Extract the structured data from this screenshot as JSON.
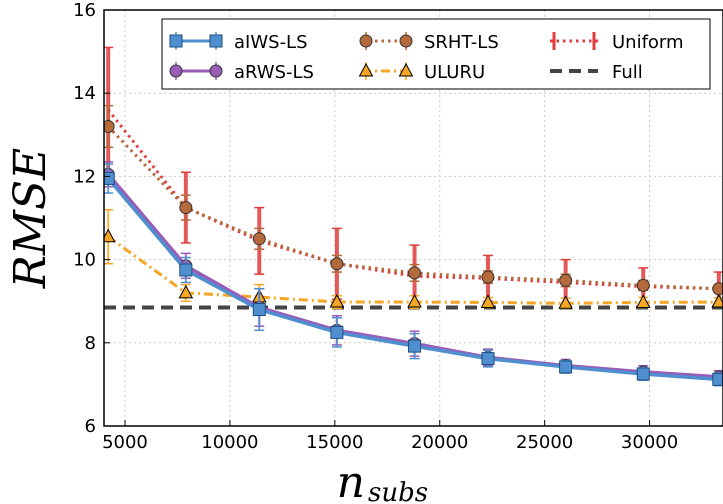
{
  "chart_data": {
    "type": "line",
    "title": "",
    "xlabel": "n",
    "xlabel_sub": "subs",
    "ylabel": "RMSE",
    "xlim": [
      4000,
      33500
    ],
    "ylim": [
      6,
      16
    ],
    "xticks": [
      5000,
      10000,
      15000,
      20000,
      25000,
      30000
    ],
    "yticks": [
      6,
      8,
      10,
      12,
      14,
      16
    ],
    "xtick_labels": [
      "5000",
      "10000",
      "15000",
      "20000",
      "25000",
      "30000"
    ],
    "ytick_labels": [
      "6",
      "8",
      "10",
      "12",
      "14",
      "16"
    ],
    "legend_position": "top-right",
    "x": [
      4200,
      7900,
      11400,
      15100,
      18800,
      22300,
      26000,
      29700,
      33300
    ],
    "series": [
      {
        "name": "aIWS-LS",
        "color": "#4f8fcf",
        "style": "solid",
        "marker": "square",
        "values": [
          11.95,
          9.75,
          8.8,
          8.25,
          7.92,
          7.62,
          7.42,
          7.25,
          7.12
        ],
        "errors": [
          0.35,
          0.3,
          0.5,
          0.35,
          0.3,
          0.2,
          0.15,
          0.15,
          0.15
        ]
      },
      {
        "name": "aRWS-LS",
        "color": "#9a5cb8",
        "style": "solid",
        "marker": "circle",
        "values": [
          12.05,
          9.85,
          8.85,
          8.3,
          7.98,
          7.65,
          7.45,
          7.3,
          7.18
        ],
        "errors": [
          0.3,
          0.3,
          0.45,
          0.35,
          0.3,
          0.2,
          0.15,
          0.15,
          0.15
        ]
      },
      {
        "name": "SRHT-LS",
        "color": "#b56a3c",
        "style": "dotted",
        "marker": "circle",
        "values": [
          13.2,
          11.25,
          10.5,
          9.9,
          9.68,
          9.58,
          9.5,
          9.38,
          9.3
        ],
        "errors": [
          0.5,
          0.3,
          0.25,
          0.2,
          0.2,
          0.15,
          0.15,
          0.12,
          0.1
        ]
      },
      {
        "name": "ULURU",
        "color": "#f5a623",
        "style": "dashdot",
        "marker": "triangle",
        "values": [
          10.55,
          9.2,
          9.1,
          8.98,
          8.98,
          8.97,
          8.95,
          8.97,
          8.98
        ],
        "errors": [
          0.65,
          0.2,
          0.3,
          0.15,
          0.15,
          0.12,
          0.12,
          0.12,
          0.1
        ]
      },
      {
        "name": "Uniform",
        "color": "#e03c3c",
        "style": "dotted",
        "marker": "none",
        "values": [
          13.6,
          11.25,
          10.45,
          9.9,
          9.6,
          9.55,
          9.45,
          9.35,
          9.3
        ],
        "errors": [
          1.5,
          0.85,
          0.8,
          0.85,
          0.75,
          0.55,
          0.55,
          0.45,
          0.4
        ]
      },
      {
        "name": "Full",
        "color": "#444444",
        "style": "dashed",
        "marker": "none",
        "values": [
          8.85,
          8.85,
          8.85,
          8.85,
          8.85,
          8.85,
          8.85,
          8.85,
          8.85
        ],
        "errors": []
      }
    ]
  }
}
